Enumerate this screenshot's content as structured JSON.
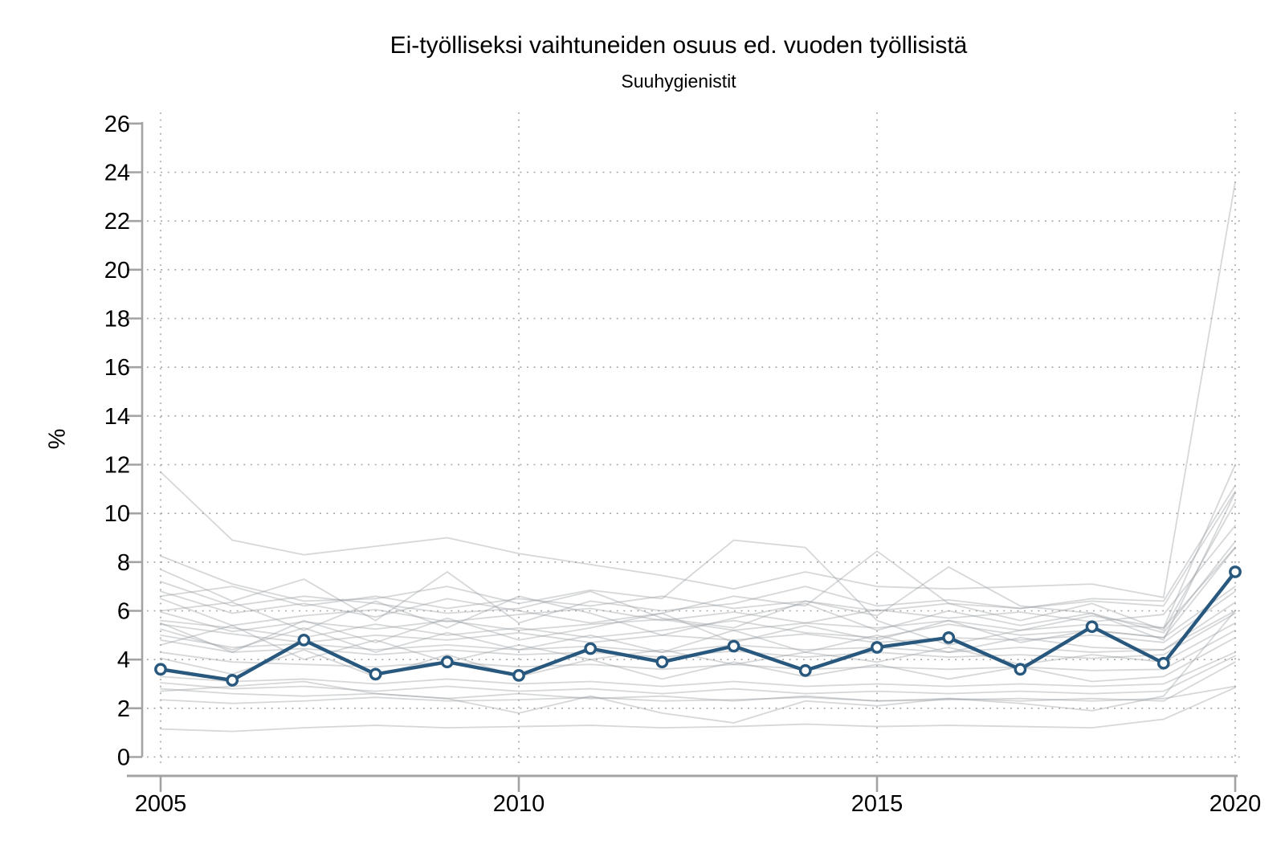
{
  "colors": {
    "highlight": "#28587e",
    "background_line": "#9aa0a4",
    "background_line_opacity": 0.42,
    "axis": "#a3a3a3",
    "grid": "#a0a0a0",
    "marker_fill": "#ffffff",
    "text": "#000000"
  },
  "chart_data": {
    "type": "line",
    "title": "Ei-työlliseksi vaihtuneiden osuus ed. vuoden työllisistä",
    "subtitle": "Suuhygienistit",
    "ylabel": "%",
    "xlabel": "",
    "grid": "dotted",
    "legend": "none",
    "xlim": [
      2005,
      2020
    ],
    "ylim": [
      0,
      26
    ],
    "x": [
      2005,
      2006,
      2007,
      2008,
      2009,
      2010,
      2011,
      2012,
      2013,
      2014,
      2015,
      2016,
      2017,
      2018,
      2019,
      2020
    ],
    "x_ticks": [
      2005,
      2010,
      2015,
      2020
    ],
    "y_ticks": [
      0,
      2,
      4,
      6,
      8,
      10,
      12,
      14,
      16,
      18,
      20,
      22,
      24,
      26
    ],
    "y_gridlines": [
      0,
      2,
      4,
      6,
      8,
      10,
      12,
      14,
      16,
      18,
      20,
      22,
      24
    ],
    "highlight_series": {
      "name": "Suuhygienistit",
      "values": [
        3.6,
        3.15,
        4.8,
        3.4,
        3.9,
        3.35,
        4.45,
        3.9,
        4.55,
        3.55,
        4.5,
        4.9,
        3.6,
        5.35,
        3.85,
        7.6
      ]
    },
    "background_series": [
      {
        "values": [
          11.7,
          8.9,
          8.3,
          8.65,
          9.0,
          8.35,
          7.9,
          7.45,
          6.9,
          7.6,
          7.0,
          6.9,
          7.0,
          7.1,
          6.55,
          23.6
        ]
      },
      {
        "values": [
          8.25,
          7.1,
          6.4,
          6.5,
          7.0,
          6.3,
          6.85,
          6.5,
          8.9,
          8.6,
          5.6,
          4.6,
          5.2,
          5.8,
          5.3,
          12.0
        ]
      },
      {
        "values": [
          7.7,
          6.4,
          7.3,
          5.6,
          7.6,
          5.5,
          6.4,
          6.0,
          6.3,
          7.0,
          6.2,
          6.45,
          6.1,
          6.5,
          6.4,
          11.15
        ]
      },
      {
        "values": [
          7.2,
          6.2,
          6.6,
          6.3,
          5.9,
          6.1,
          6.8,
          5.7,
          5.3,
          6.4,
          5.8,
          7.8,
          6.2,
          5.9,
          4.8,
          10.85
        ]
      },
      {
        "values": [
          6.8,
          5.9,
          6.3,
          5.75,
          6.5,
          6.0,
          5.5,
          5.9,
          6.6,
          6.2,
          8.45,
          6.3,
          5.6,
          6.3,
          5.2,
          10.45
        ]
      },
      {
        "values": [
          6.5,
          5.4,
          5.8,
          6.05,
          5.55,
          5.85,
          6.1,
          5.6,
          5.95,
          5.5,
          6.05,
          5.7,
          5.95,
          5.55,
          5.85,
          9.5
        ]
      },
      {
        "values": [
          6.0,
          6.35,
          5.2,
          6.4,
          5.3,
          6.6,
          5.9,
          5.0,
          5.7,
          6.3,
          5.2,
          6.0,
          5.4,
          5.9,
          5.1,
          8.85
        ]
      },
      {
        "values": [
          5.95,
          5.15,
          5.55,
          5.25,
          5.6,
          5.2,
          5.45,
          5.65,
          5.2,
          5.5,
          5.3,
          5.6,
          5.2,
          5.45,
          5.3,
          8.6
        ]
      },
      {
        "values": [
          5.5,
          4.3,
          5.6,
          4.7,
          5.7,
          4.8,
          5.3,
          5.9,
          4.7,
          5.4,
          4.8,
          5.6,
          4.7,
          5.2,
          4.9,
          7.0
        ]
      },
      {
        "values": [
          5.45,
          5.05,
          4.7,
          5.0,
          4.8,
          5.1,
          4.7,
          5.0,
          4.8,
          5.05,
          4.7,
          4.9,
          4.8,
          5.0,
          4.7,
          6.8
        ]
      },
      {
        "values": [
          5.25,
          4.4,
          5.3,
          4.3,
          5.1,
          4.4,
          5.0,
          4.3,
          5.2,
          4.3,
          5.0,
          4.3,
          4.9,
          4.5,
          4.4,
          6.35
        ]
      },
      {
        "values": [
          5.0,
          4.5,
          4.65,
          4.4,
          4.6,
          4.4,
          4.55,
          4.3,
          4.6,
          4.4,
          4.5,
          4.3,
          4.5,
          4.3,
          4.4,
          6.0
        ]
      },
      {
        "values": [
          4.8,
          4.3,
          4.45,
          4.2,
          4.4,
          4.2,
          4.3,
          4.1,
          4.35,
          4.1,
          4.3,
          4.1,
          4.2,
          4.05,
          4.2,
          5.9
        ]
      },
      {
        "values": [
          4.6,
          5.4,
          4.0,
          4.8,
          3.9,
          4.6,
          4.0,
          4.4,
          3.8,
          4.3,
          3.9,
          4.5,
          3.8,
          4.2,
          3.9,
          5.5
        ]
      },
      {
        "values": [
          4.3,
          3.9,
          3.8,
          3.7,
          3.9,
          3.7,
          3.8,
          3.6,
          3.8,
          3.6,
          3.7,
          3.6,
          3.7,
          3.55,
          3.6,
          5.2
        ]
      },
      {
        "values": [
          4.05,
          3.4,
          4.4,
          3.3,
          4.2,
          3.3,
          4.0,
          3.2,
          3.9,
          3.3,
          3.8,
          3.2,
          3.7,
          3.1,
          3.3,
          4.9
        ]
      },
      {
        "values": [
          3.3,
          3.1,
          3.2,
          3.0,
          3.2,
          3.0,
          3.1,
          2.9,
          3.1,
          2.9,
          3.0,
          2.9,
          3.0,
          2.9,
          3.0,
          4.3
        ]
      },
      {
        "values": [
          3.05,
          2.8,
          2.9,
          2.7,
          2.9,
          2.7,
          2.8,
          2.6,
          2.8,
          2.6,
          2.7,
          2.6,
          2.7,
          2.6,
          2.7,
          4.15
        ]
      },
      {
        "values": [
          2.8,
          2.6,
          2.5,
          2.6,
          2.4,
          2.6,
          2.4,
          2.5,
          2.3,
          2.5,
          2.3,
          2.4,
          2.3,
          2.4,
          2.3,
          3.9
        ]
      },
      {
        "values": [
          2.7,
          2.9,
          3.1,
          2.6,
          2.4,
          1.8,
          2.5,
          1.8,
          1.4,
          2.3,
          2.1,
          2.4,
          2.2,
          1.9,
          2.5,
          6.0
        ]
      },
      {
        "values": [
          2.35,
          2.2,
          2.3,
          2.45,
          2.3,
          2.35,
          2.45,
          2.3,
          2.35,
          2.45,
          2.3,
          2.35,
          2.4,
          2.3,
          2.4,
          2.9
        ]
      },
      {
        "values": [
          1.15,
          1.05,
          1.2,
          1.3,
          1.2,
          1.25,
          1.3,
          1.2,
          1.25,
          1.35,
          1.25,
          1.3,
          1.25,
          1.2,
          1.55,
          2.85
        ]
      },
      {
        "values": [
          6.6,
          7.0,
          6.2,
          6.6,
          6.1,
          6.5,
          6.2,
          6.6,
          6.1,
          6.4,
          6.0,
          6.3,
          6.1,
          6.4,
          6.2,
          10.9
        ]
      },
      {
        "values": [
          5.6,
          5.3,
          4.9,
          5.45,
          5.0,
          5.3,
          4.9,
          5.2,
          5.6,
          5.1,
          4.9,
          5.45,
          5.0,
          5.2,
          4.9,
          8.6
        ]
      }
    ]
  }
}
